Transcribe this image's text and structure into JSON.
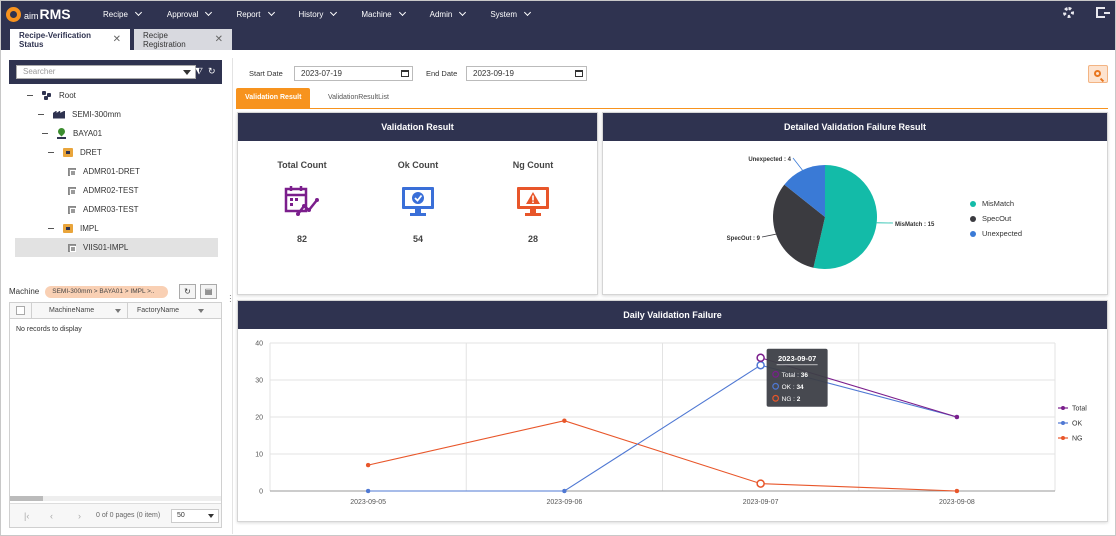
{
  "app": {
    "logo_prefix": "aim",
    "logo_name": "RMS"
  },
  "menu": [
    {
      "label": "Recipe"
    },
    {
      "label": "Approval"
    },
    {
      "label": "Report"
    },
    {
      "label": "History"
    },
    {
      "label": "Machine"
    },
    {
      "label": "Admin"
    },
    {
      "label": "System"
    }
  ],
  "doc_tabs": {
    "active": "Recipe-Verification Status",
    "inactive": "Recipe Registration"
  },
  "search": {
    "placeholder": "Searcher"
  },
  "tree": [
    {
      "label": "Root",
      "icon": "root-icon"
    },
    {
      "label": "SEMI-300mm",
      "icon": "factory-icon"
    },
    {
      "label": "BAYA01",
      "icon": "location-pin-icon"
    },
    {
      "label": "DRET",
      "icon": "folder-icon"
    },
    {
      "label": "ADMR01-DRET",
      "icon": "equipment-icon"
    },
    {
      "label": "ADMR02-TEST",
      "icon": "equipment-icon"
    },
    {
      "label": "ADMR03-TEST",
      "icon": "equipment-icon"
    },
    {
      "label": "IMPL",
      "icon": "folder-icon"
    },
    {
      "label": "VIIS01-IMPL",
      "icon": "equipment-icon"
    }
  ],
  "machine": {
    "label": "Machine",
    "breadcrumb": "SEMI-300mm  > BAYA01  > IMPL  >..",
    "columns": [
      "MachineName",
      "FactoryName"
    ],
    "empty_text": "No records to display",
    "pager_info": "0 of 0 pages (0 item)",
    "page_size": "50"
  },
  "filter": {
    "start_label": "Start Date",
    "start_value": "2023-07-19",
    "end_label": "End Date",
    "end_value": "2023-09-19"
  },
  "subtabs": {
    "active": "Validation Result",
    "inactive": "ValidationResultList"
  },
  "validation": {
    "title": "Validation Result",
    "total_label": "Total Count",
    "total_value": "82",
    "ok_label": "Ok Count",
    "ok_value": "54",
    "ng_label": "Ng Count",
    "ng_value": "28"
  },
  "failure_title": "Detailed Validation Failure Result",
  "daily_title": "Daily Validation Failure",
  "colors": {
    "navy": "#2f3350",
    "orange": "#f7931e",
    "mismatch": "#13bba8",
    "specout": "#3b3b40",
    "unexpected": "#3a7ad6",
    "total": "#7b1e8c",
    "ok": "#4f78d3",
    "ng": "#e8562a"
  },
  "chart_data": [
    {
      "type": "pie",
      "title": "Detailed Validation Failure Result",
      "slices": [
        {
          "name": "MisMatch",
          "value": 15,
          "label": "MisMatch : 15"
        },
        {
          "name": "SpecOut",
          "value": 9,
          "label": "SpecOut : 9"
        },
        {
          "name": "Unexpected",
          "value": 4,
          "label": "Unexpected : 4"
        }
      ],
      "legend": "right"
    },
    {
      "type": "line",
      "title": "Daily Validation Failure",
      "categories": [
        "2023-09-05",
        "2023-09-06",
        "2023-09-07",
        "2023-09-08"
      ],
      "series": [
        {
          "name": "Total",
          "values": [
            null,
            null,
            36,
            20
          ]
        },
        {
          "name": "OK",
          "values": [
            0,
            0,
            34,
            20
          ]
        },
        {
          "name": "NG",
          "values": [
            7,
            19,
            2,
            0
          ]
        }
      ],
      "y_ticks": [
        "0",
        "10",
        "20",
        "30",
        "40"
      ],
      "ylim": [
        0,
        40
      ],
      "grid": true,
      "legend": "right",
      "tooltip": {
        "title": "2023-09-07",
        "rows": [
          {
            "label": "Total : ",
            "value": "36"
          },
          {
            "label": "OK : ",
            "value": "34"
          },
          {
            "label": "NG : ",
            "value": "2"
          }
        ]
      }
    }
  ]
}
